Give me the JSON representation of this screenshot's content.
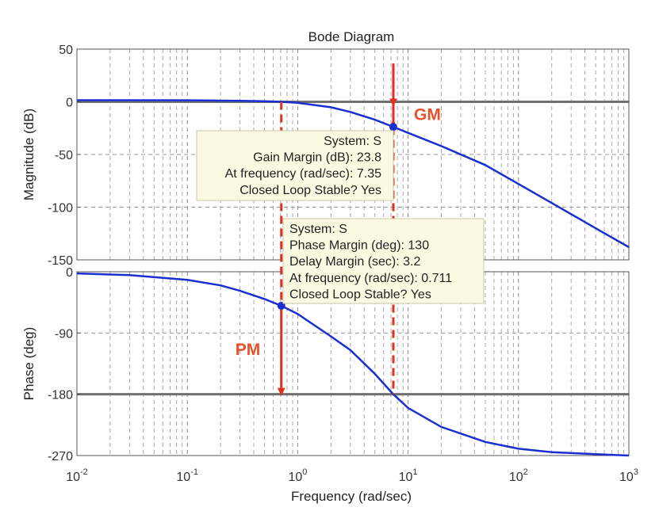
{
  "chart_data": {
    "type": "line",
    "title": "Bode Diagram",
    "xlabel": "Frequency  (rad/sec)",
    "x_scale": "log",
    "xlim": [
      0.01,
      1000
    ],
    "x_ticks": [
      {
        "value": 0.01,
        "base": "10",
        "exp": "-2"
      },
      {
        "value": 0.1,
        "base": "10",
        "exp": "-1"
      },
      {
        "value": 1,
        "base": "10",
        "exp": "0"
      },
      {
        "value": 10,
        "base": "10",
        "exp": "1"
      },
      {
        "value": 100,
        "base": "10",
        "exp": "2"
      },
      {
        "value": 1000,
        "base": "10",
        "exp": "3"
      }
    ],
    "grid": true,
    "line_color": "#1a2fd0",
    "reference_line_color": "#707070",
    "marker_color": "#e03020",
    "panels": [
      {
        "name": "magnitude",
        "ylabel": "Magnitude (dB)",
        "ylim": [
          -150,
          50
        ],
        "y_ticks": [
          {
            "value": 50,
            "label": "50"
          },
          {
            "value": 0,
            "label": "0"
          },
          {
            "value": -50,
            "label": "-50"
          },
          {
            "value": -100,
            "label": "-100"
          },
          {
            "value": -150,
            "label": "-150"
          }
        ],
        "reference_line": 0,
        "series": [
          {
            "x": [
              0.01,
              0.1,
              0.3,
              0.5,
              0.711,
              1,
              2,
              3,
              5,
              7.35,
              10,
              20,
              50,
              100,
              200,
              500,
              1000
            ],
            "y": [
              1.5,
              1.4,
              1.0,
              0.6,
              0.0,
              -1.0,
              -5.2,
              -9.6,
              -17.0,
              -23.8,
              -29.5,
              -42.0,
              -60.0,
              -78.0,
              -96.0,
              -120.0,
              -138.0
            ]
          }
        ]
      },
      {
        "name": "phase",
        "ylabel": "Phase (deg)",
        "ylim": [
          -270,
          0
        ],
        "y_ticks": [
          {
            "value": 0,
            "label": "0"
          },
          {
            "value": -90,
            "label": "-90"
          },
          {
            "value": -180,
            "label": "-180"
          },
          {
            "value": -270,
            "label": "-270"
          }
        ],
        "reference_line": -180,
        "series": [
          {
            "x": [
              0.01,
              0.03,
              0.1,
              0.2,
              0.3,
              0.5,
              0.711,
              1,
              2,
              3,
              5,
              7.35,
              10,
              20,
              50,
              100,
              200,
              500,
              1000
            ],
            "y": [
              -2.5,
              -5,
              -12,
              -20,
              -28,
              -40,
              -50,
              -62,
              -95,
              -115,
              -150,
              -180,
              -200,
              -228,
              -250,
              -260,
              -265,
              -268,
              -270
            ]
          }
        ]
      }
    ],
    "markers": {
      "gain_margin": {
        "frequency": 7.35,
        "magnitude_db": -23.8,
        "phase_deg": -180,
        "label": "GM"
      },
      "phase_margin": {
        "frequency": 0.711,
        "phase_deg": -50,
        "reference_deg": -180,
        "label": "PM"
      }
    },
    "datatips": [
      {
        "name": "gain-margin-datatip",
        "lines": [
          "System: S",
          "Gain Margin (dB): 23.8",
          "At frequency (rad/sec): 7.35",
          "Closed Loop Stable? Yes"
        ]
      },
      {
        "name": "phase-margin-datatip",
        "lines": [
          "System: S",
          "Phase Margin (deg): 130",
          "Delay Margin (sec): 3.2",
          "At frequency (rad/sec): 0.711",
          "Closed Loop Stable? Yes"
        ]
      }
    ]
  }
}
